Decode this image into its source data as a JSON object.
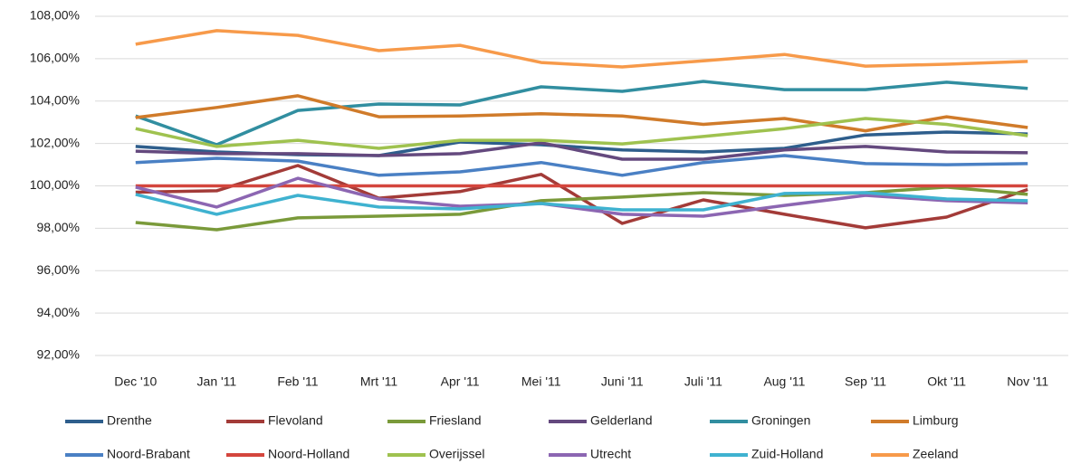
{
  "chart_data": {
    "type": "line",
    "categories": [
      "Dec '10",
      "Jan '11",
      "Feb '11",
      "Mrt '11",
      "Apr '11",
      "Mei '11",
      "Juni '11",
      "Juli '11",
      "Aug '11",
      "Sep '11",
      "Okt '11",
      "Nov '11"
    ],
    "ylim": [
      92,
      108
    ],
    "yticks": [
      {
        "value": 92,
        "label": "92,00%"
      },
      {
        "value": 94,
        "label": "94,00%"
      },
      {
        "value": 96,
        "label": "96,00%"
      },
      {
        "value": 98,
        "label": "98,00%"
      },
      {
        "value": 100,
        "label": "100,00%"
      },
      {
        "value": 102,
        "label": "102,00%"
      },
      {
        "value": 104,
        "label": "104,00%"
      },
      {
        "value": 106,
        "label": "106,00%"
      },
      {
        "value": 108,
        "label": "108,00%"
      }
    ],
    "grid": true,
    "legend": "bottom",
    "series": [
      {
        "name": "Drenthe",
        "color": "#2e5e8c",
        "values": [
          101.86,
          101.6,
          101.47,
          101.43,
          102.07,
          101.94,
          101.7,
          101.6,
          101.77,
          102.4,
          102.54,
          102.45
        ]
      },
      {
        "name": "Flevoland",
        "color": "#a33b38",
        "values": [
          99.7,
          99.77,
          100.96,
          99.42,
          99.73,
          100.54,
          98.23,
          99.34,
          98.66,
          98.02,
          98.53,
          99.83
        ]
      },
      {
        "name": "Friesland",
        "color": "#7a9a3a",
        "values": [
          98.27,
          97.93,
          98.49,
          98.57,
          98.66,
          99.3,
          99.47,
          99.68,
          99.55,
          99.68,
          99.94,
          99.6
        ]
      },
      {
        "name": "Gelderland",
        "color": "#64497e",
        "values": [
          101.64,
          101.52,
          101.52,
          101.43,
          101.52,
          102.03,
          101.26,
          101.26,
          101.7,
          101.86,
          101.6,
          101.56
        ]
      },
      {
        "name": "Groningen",
        "color": "#318ea0",
        "values": [
          103.3,
          101.94,
          103.56,
          103.86,
          103.82,
          104.67,
          104.46,
          104.93,
          104.54,
          104.54,
          104.89,
          104.6
        ]
      },
      {
        "name": "Limburg",
        "color": "#d07b2a",
        "values": [
          103.22,
          103.7,
          104.25,
          103.26,
          103.3,
          103.4,
          103.3,
          102.9,
          103.18,
          102.6,
          103.26,
          102.75
        ]
      },
      {
        "name": "Noord-Brabant",
        "color": "#4a80c4",
        "values": [
          101.1,
          101.3,
          101.17,
          100.5,
          100.66,
          101.1,
          100.5,
          101.1,
          101.43,
          101.05,
          101.0,
          101.05
        ]
      },
      {
        "name": "Noord-Holland",
        "color": "#d4463d",
        "values": [
          100,
          100,
          100,
          100,
          100,
          100,
          100,
          100,
          100,
          100,
          100,
          100
        ]
      },
      {
        "name": "Overijssel",
        "color": "#9fc24f",
        "values": [
          102.7,
          101.86,
          102.15,
          101.77,
          102.15,
          102.15,
          101.98,
          102.33,
          102.7,
          103.18,
          102.9,
          102.37
        ]
      },
      {
        "name": "Utrecht",
        "color": "#8c66b2",
        "values": [
          99.94,
          99.0,
          100.36,
          99.38,
          99.04,
          99.17,
          98.66,
          98.57,
          99.08,
          99.55,
          99.3,
          99.2
        ]
      },
      {
        "name": "Zuid-Holland",
        "color": "#3fb2d0",
        "values": [
          99.6,
          98.66,
          99.55,
          99.0,
          98.91,
          99.17,
          98.87,
          98.87,
          99.64,
          99.68,
          99.38,
          99.3
        ]
      },
      {
        "name": "Zeeland",
        "color": "#f79a4a",
        "values": [
          106.68,
          107.32,
          107.1,
          106.38,
          106.63,
          105.82,
          105.61,
          105.9,
          106.2,
          105.65,
          105.74,
          105.87
        ]
      }
    ]
  }
}
